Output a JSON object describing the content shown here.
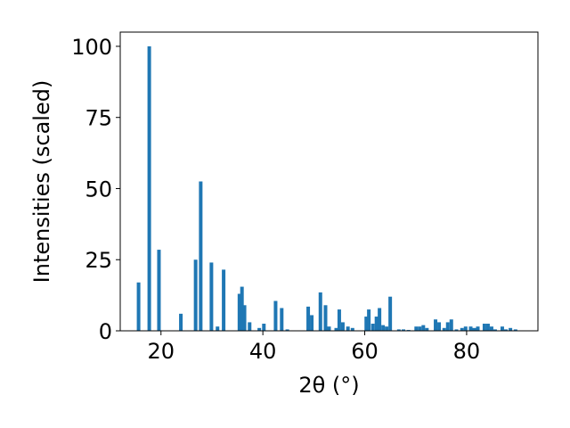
{
  "chart_data": {
    "type": "bar",
    "xlabel": "2θ (°)",
    "ylabel": "Intensities (scaled)",
    "xlim": [
      12,
      94
    ],
    "ylim": [
      0,
      105
    ],
    "xticks": [
      20,
      40,
      60,
      80
    ],
    "yticks": [
      0,
      25,
      50,
      75,
      100
    ],
    "grid": false,
    "bar_color": "#1f77b4",
    "bar_width": 0.7,
    "series": [
      {
        "x": [
          15.6,
          17.7,
          19.6,
          23.9,
          26.8,
          27.8,
          29.9,
          31.1,
          32.3,
          35.4,
          35.9,
          36.4,
          37.4,
          39.3,
          40.2,
          42.5,
          43.7,
          44.8,
          48.9,
          49.6,
          51.3,
          52.3,
          53.0,
          54.4,
          55.0,
          55.7,
          56.7,
          57.6,
          60.3,
          60.8,
          61.6,
          62.3,
          62.9,
          63.6,
          64.3,
          65.0,
          66.7,
          67.6,
          68.6,
          70.1,
          70.8,
          71.5,
          72.2,
          73.9,
          74.6,
          75.6,
          76.3,
          77.0,
          78.0,
          79.1,
          79.8,
          80.8,
          81.5,
          82.2,
          83.5,
          84.2,
          84.9,
          85.6,
          87.0,
          87.7,
          88.6,
          89.6
        ],
        "values": [
          17,
          100,
          28.5,
          6,
          25,
          52.5,
          24,
          1.5,
          21.5,
          13,
          15.5,
          9,
          3,
          1,
          2.5,
          10.5,
          8,
          0.5,
          8.5,
          5.5,
          13.5,
          9,
          1.5,
          1,
          7.5,
          3,
          1.5,
          1,
          5,
          7.5,
          2.5,
          5,
          8,
          2,
          1.5,
          12,
          0.5,
          0.5,
          0.3,
          1.5,
          1.5,
          2,
          1,
          4,
          3,
          1,
          3,
          4,
          0.5,
          1,
          1.5,
          1.5,
          1,
          1.5,
          2.5,
          2.5,
          1.5,
          0.5,
          1.5,
          0.5,
          1,
          0.5
        ]
      }
    ]
  }
}
